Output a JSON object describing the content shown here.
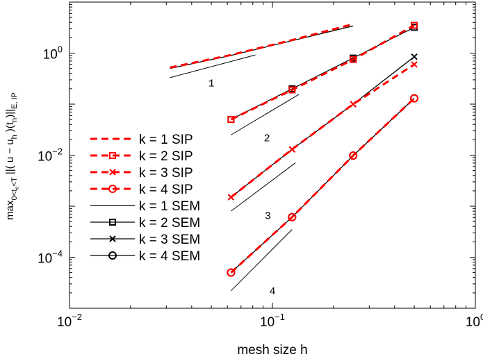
{
  "chart_data": {
    "type": "line",
    "x_scale": "log",
    "y_scale": "log",
    "xlim": [
      0.01,
      1
    ],
    "ylim": [
      1e-05,
      10
    ],
    "xlabel": "mesh size h",
    "ylabel_parts": {
      "max": "max",
      "max_sub": "0<t",
      "max_sub_sub": "n",
      "max_sub_tail": "<T",
      "norm": " ||( u − u",
      "norm_sub": "h",
      "norm_mid": " )(t",
      "norm_mid_sub": "n",
      "norm_end": ")||",
      "norm_end_sub": "E, IP"
    },
    "x_ticks": [
      {
        "value": 0.01,
        "base": "10",
        "exp": "−2"
      },
      {
        "value": 0.1,
        "base": "10",
        "exp": "−1"
      },
      {
        "value": 1,
        "base": "10",
        "exp": "0"
      }
    ],
    "y_ticks": [
      {
        "value": 0.0001,
        "base": "10",
        "exp": "−4"
      },
      {
        "value": 0.01,
        "base": "10",
        "exp": "−2"
      },
      {
        "value": 1,
        "base": "10",
        "exp": "0"
      }
    ],
    "grid": false,
    "legend_position": "left",
    "series": [
      {
        "name": "k = 1 SIP",
        "color": "#ff0000",
        "dash": true,
        "marker": "none",
        "x": [
          0.03125,
          0.0625,
          0.125,
          0.25
        ],
        "y": [
          0.52,
          0.92,
          1.8,
          3.7
        ]
      },
      {
        "name": "k = 2 SIP",
        "color": "#ff0000",
        "dash": true,
        "marker": "square",
        "x": [
          0.0625,
          0.125,
          0.25,
          0.5
        ],
        "y": [
          0.05,
          0.19,
          0.75,
          3.5
        ]
      },
      {
        "name": "k = 3 SIP",
        "color": "#ff0000",
        "dash": true,
        "marker": "x",
        "x": [
          0.0625,
          0.125,
          0.25,
          0.5
        ],
        "y": [
          0.0015,
          0.013,
          0.1,
          0.6
        ]
      },
      {
        "name": "k = 4 SIP",
        "color": "#ff0000",
        "dash": true,
        "marker": "circle",
        "x": [
          0.0625,
          0.125,
          0.25,
          0.5
        ],
        "y": [
          5e-05,
          0.00061,
          0.0098,
          0.13
        ]
      },
      {
        "name": "k = 1 SEM",
        "color": "#000000",
        "dash": false,
        "marker": "none",
        "x": [
          0.03125,
          0.0625,
          0.125,
          0.25
        ],
        "y": [
          0.5,
          0.9,
          1.75,
          3.4
        ]
      },
      {
        "name": "k = 2 SEM",
        "color": "#000000",
        "dash": false,
        "marker": "square",
        "x": [
          0.0625,
          0.125,
          0.25,
          0.5
        ],
        "y": [
          0.05,
          0.2,
          0.8,
          3.2
        ]
      },
      {
        "name": "k = 3 SEM",
        "color": "#000000",
        "dash": false,
        "marker": "x",
        "x": [
          0.0625,
          0.125,
          0.25,
          0.5
        ],
        "y": [
          0.0015,
          0.013,
          0.1,
          0.85
        ]
      },
      {
        "name": "k = 4 SEM",
        "color": "#000000",
        "dash": false,
        "marker": "circle",
        "x": [
          0.0625,
          0.125,
          0.25,
          0.5
        ],
        "y": [
          5e-05,
          0.00061,
          0.0098,
          0.13
        ]
      }
    ],
    "slope_indicators": [
      {
        "label": "1",
        "x": [
          0.03125,
          0.0825
        ],
        "y": [
          0.33,
          0.92
        ],
        "label_at": [
          0.05,
          0.26
        ]
      },
      {
        "label": "2",
        "x": [
          0.0625,
          0.135
        ],
        "y": [
          0.025,
          0.155
        ],
        "label_at": [
          0.094,
          0.022
        ]
      },
      {
        "label": "3",
        "x": [
          0.0625,
          0.13
        ],
        "y": [
          0.0008,
          0.0071
        ],
        "label_at": [
          0.095,
          0.00066
        ]
      },
      {
        "label": "4",
        "x": [
          0.0625,
          0.125
        ],
        "y": [
          2.2e-05,
          0.00035
        ],
        "label_at": [
          0.1,
          2.2e-05
        ]
      }
    ]
  }
}
